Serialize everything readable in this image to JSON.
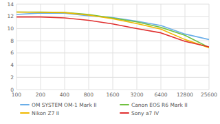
{
  "chart_data": {
    "type": "line",
    "x": [
      100,
      200,
      400,
      800,
      1600,
      3200,
      6400,
      12800,
      25600
    ],
    "series": [
      {
        "name": "OM SYSTEM OM-1 Mark II",
        "color": "#6aaee8",
        "values": [
          12.3,
          12.55,
          12.5,
          12.1,
          11.8,
          11.2,
          10.5,
          9.1,
          8.2
        ]
      },
      {
        "name": "Canon EOS R6 Mark II",
        "color": "#70c040",
        "values": [
          12.7,
          12.7,
          12.65,
          12.3,
          11.7,
          11.1,
          10.2,
          8.9,
          6.9
        ]
      },
      {
        "name": "Nikon Z7 II",
        "color": "#f0b800",
        "values": [
          12.7,
          12.65,
          12.6,
          12.2,
          11.6,
          10.8,
          9.9,
          8.2,
          6.85
        ]
      },
      {
        "name": "Sony a7 IV",
        "color": "#e03030",
        "values": [
          11.9,
          11.9,
          11.75,
          11.35,
          10.75,
          10.0,
          9.3,
          7.9,
          7.0
        ]
      }
    ],
    "xlim": [
      100,
      25600
    ],
    "xticks": [
      100,
      200,
      400,
      800,
      1600,
      3200,
      6400,
      12800,
      25600
    ],
    "ylim": [
      0,
      14
    ],
    "yticks": [
      0,
      2,
      4,
      6,
      8,
      10,
      12,
      14
    ],
    "log": "x",
    "grid": true,
    "legend": "bottom"
  }
}
